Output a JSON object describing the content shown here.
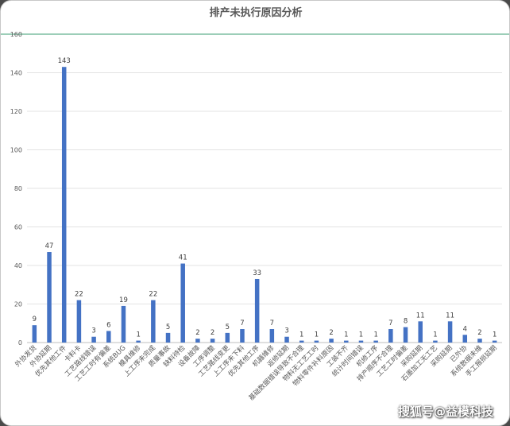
{
  "chart_data": {
    "type": "bar",
    "title": "排产未执行原因分析",
    "xlabel": "",
    "ylabel": "",
    "categories": [
      "外协发货",
      "外协延期",
      "优先其他工件",
      "卡料卡",
      "工艺路线错误",
      "工艺工时有偏差",
      "系统BUG",
      "模具维修",
      "上工序未完成",
      "质量事故",
      "缺料待检",
      "设备故障",
      "工序调整",
      "工艺路线变更",
      "上工序未下料",
      "优先其他工序",
      "机器维修",
      "返修延期",
      "基础数据错误导致不合理",
      "物料无工艺工时",
      "物料零件补料原因",
      "工装不齐",
      "统计时间错误",
      "机修工序",
      "排产顺序不合理",
      "工艺工时偏差",
      "采购延期",
      "石墨加工无工艺",
      "采购延期",
      "已外协",
      "系统数据未维",
      "手工报损延期"
    ],
    "values": [
      9,
      47,
      143,
      22,
      3,
      6,
      19,
      1,
      22,
      5,
      41,
      2,
      2,
      5,
      7,
      33,
      7,
      3,
      1,
      1,
      2,
      1,
      1,
      1,
      7,
      8,
      11,
      1,
      11,
      4,
      2,
      1
    ],
    "ylim": [
      0,
      160
    ],
    "yticks": [
      0,
      20,
      40,
      60,
      80,
      100,
      120,
      140,
      160
    ],
    "grid": true,
    "legend": "none",
    "colors": {
      "bar": "#4472c4",
      "top_line": "#3a9e72",
      "grid": "#e3e3e3",
      "baseline": "#bfbfbf"
    }
  },
  "watermark": "搜狐号@益模科技"
}
